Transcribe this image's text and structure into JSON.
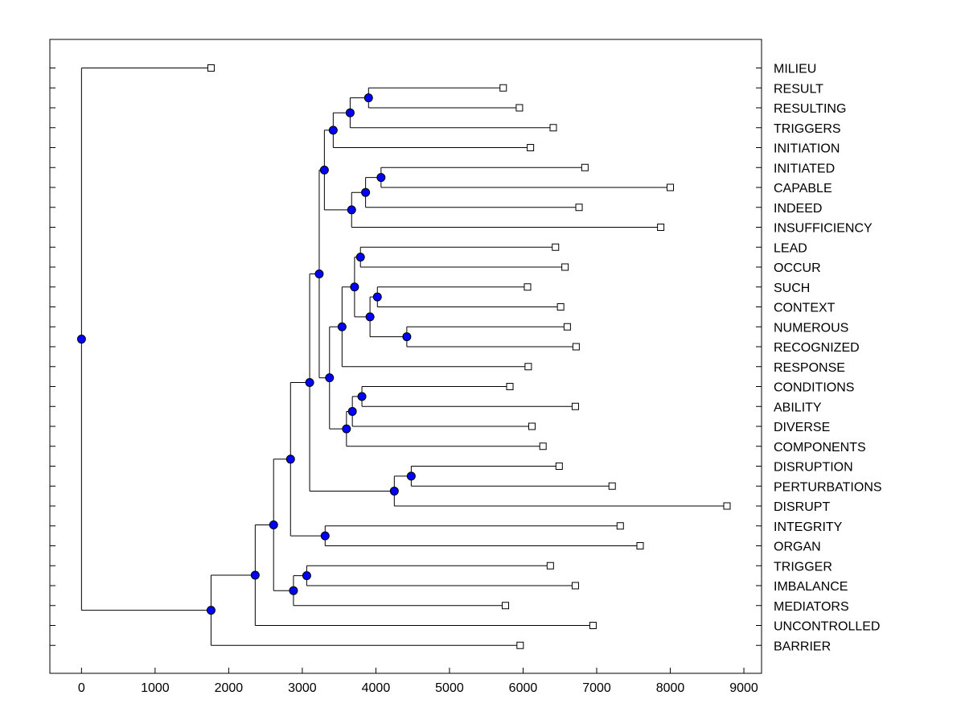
{
  "chart_data": {
    "type": "dendrogram",
    "xlim": [
      -430,
      9240
    ],
    "x_ticks": [
      0,
      1000,
      2000,
      3000,
      4000,
      5000,
      6000,
      7000,
      8000,
      9000
    ],
    "x_tick_labels": [
      "0",
      "1000",
      "2000",
      "3000",
      "4000",
      "5000",
      "6000",
      "7000",
      "8000",
      "9000"
    ],
    "leaves": [
      {
        "label": "MILIEU",
        "x": 1760
      },
      {
        "label": "RESULT",
        "x": 5730
      },
      {
        "label": "RESULTING",
        "x": 5950
      },
      {
        "label": "TRIGGERS",
        "x": 6410
      },
      {
        "label": "INITIATION",
        "x": 6100
      },
      {
        "label": "INITIATED",
        "x": 6840
      },
      {
        "label": "CAPABLE",
        "x": 8000
      },
      {
        "label": "INDEED",
        "x": 6760
      },
      {
        "label": "INSUFFICIENCY",
        "x": 7870
      },
      {
        "label": "LEAD",
        "x": 6440
      },
      {
        "label": "OCCUR",
        "x": 6570
      },
      {
        "label": "SUCH",
        "x": 6060
      },
      {
        "label": "CONTEXT",
        "x": 6510
      },
      {
        "label": "NUMEROUS",
        "x": 6600
      },
      {
        "label": "RECOGNIZED",
        "x": 6720
      },
      {
        "label": "RESPONSE",
        "x": 6070
      },
      {
        "label": "CONDITIONS",
        "x": 5820
      },
      {
        "label": "ABILITY",
        "x": 6710
      },
      {
        "label": "DIVERSE",
        "x": 6120
      },
      {
        "label": "COMPONENTS",
        "x": 6270
      },
      {
        "label": "DISRUPTION",
        "x": 6490
      },
      {
        "label": "PERTURBATIONS",
        "x": 7210
      },
      {
        "label": "DISRUPT",
        "x": 8770
      },
      {
        "label": "INTEGRITY",
        "x": 7320
      },
      {
        "label": "ORGAN",
        "x": 7590
      },
      {
        "label": "TRIGGER",
        "x": 6370
      },
      {
        "label": "IMBALANCE",
        "x": 6710
      },
      {
        "label": "MEDIATORS",
        "x": 5760
      },
      {
        "label": "UNCONTROLLED",
        "x": 6950
      },
      {
        "label": "BARRIER",
        "x": 5960
      }
    ],
    "nodes": [
      {
        "id": "n_result",
        "x": 3900,
        "children": [
          {
            "leaf": 1
          },
          {
            "leaf": 2
          }
        ]
      },
      {
        "id": "n_resulting",
        "x": 3650,
        "children": [
          {
            "node": "n_result"
          },
          {
            "leaf": 3
          }
        ]
      },
      {
        "id": "n_triggers",
        "x": 3420,
        "children": [
          {
            "node": "n_resulting"
          },
          {
            "leaf": 4
          }
        ]
      },
      {
        "id": "n_initiated",
        "x": 4070,
        "children": [
          {
            "leaf": 5
          },
          {
            "leaf": 6
          }
        ]
      },
      {
        "id": "n_capable",
        "x": 3860,
        "children": [
          {
            "node": "n_initiated"
          },
          {
            "leaf": 7
          }
        ]
      },
      {
        "id": "n_indeed",
        "x": 3670,
        "children": [
          {
            "node": "n_capable"
          },
          {
            "leaf": 8
          }
        ]
      },
      {
        "id": "n_upper",
        "x": 3300,
        "children": [
          {
            "node": "n_triggers"
          },
          {
            "node": "n_indeed"
          }
        ]
      },
      {
        "id": "n_lead",
        "x": 3790,
        "children": [
          {
            "leaf": 9
          },
          {
            "leaf": 10
          }
        ]
      },
      {
        "id": "n_such",
        "x": 4020,
        "children": [
          {
            "leaf": 11
          },
          {
            "leaf": 12
          }
        ]
      },
      {
        "id": "n_numerous",
        "x": 4420,
        "children": [
          {
            "leaf": 13
          },
          {
            "leaf": 14
          }
        ]
      },
      {
        "id": "n_context",
        "x": 3920,
        "children": [
          {
            "node": "n_such"
          },
          {
            "node": "n_numerous"
          }
        ]
      },
      {
        "id": "n_occur",
        "x": 3710,
        "children": [
          {
            "node": "n_lead"
          },
          {
            "node": "n_context"
          }
        ]
      },
      {
        "id": "n_recog",
        "x": 3540,
        "children": [
          {
            "node": "n_occur"
          },
          {
            "leaf": 15
          }
        ]
      },
      {
        "id": "n_conditions",
        "x": 3810,
        "children": [
          {
            "leaf": 16
          },
          {
            "leaf": 17
          }
        ]
      },
      {
        "id": "n_ability",
        "x": 3680,
        "children": [
          {
            "node": "n_conditions"
          },
          {
            "leaf": 18
          }
        ]
      },
      {
        "id": "n_diverse",
        "x": 3600,
        "children": [
          {
            "node": "n_ability"
          },
          {
            "leaf": 19
          }
        ]
      },
      {
        "id": "n_mid",
        "x": 3370,
        "children": [
          {
            "node": "n_recog"
          },
          {
            "node": "n_diverse"
          }
        ]
      },
      {
        "id": "n_upmid",
        "x": 3230,
        "children": [
          {
            "node": "n_upper"
          },
          {
            "node": "n_mid"
          }
        ]
      },
      {
        "id": "n_disruption",
        "x": 4480,
        "children": [
          {
            "leaf": 20
          },
          {
            "leaf": 21
          }
        ]
      },
      {
        "id": "n_perturb",
        "x": 4250,
        "children": [
          {
            "node": "n_disruption"
          },
          {
            "leaf": 22
          }
        ]
      },
      {
        "id": "n_big",
        "x": 3100,
        "children": [
          {
            "node": "n_upmid"
          },
          {
            "node": "n_perturb"
          }
        ]
      },
      {
        "id": "n_integrity",
        "x": 3310,
        "children": [
          {
            "leaf": 23
          },
          {
            "leaf": 24
          }
        ]
      },
      {
        "id": "n_big2",
        "x": 2840,
        "children": [
          {
            "node": "n_big"
          },
          {
            "node": "n_integrity"
          }
        ]
      },
      {
        "id": "n_trigger",
        "x": 3060,
        "children": [
          {
            "leaf": 25
          },
          {
            "leaf": 26
          }
        ]
      },
      {
        "id": "n_imbalance",
        "x": 2880,
        "children": [
          {
            "node": "n_trigger"
          },
          {
            "leaf": 27
          }
        ]
      },
      {
        "id": "n_big3",
        "x": 2610,
        "children": [
          {
            "node": "n_big2"
          },
          {
            "node": "n_imbalance"
          }
        ]
      },
      {
        "id": "n_big4",
        "x": 2360,
        "children": [
          {
            "node": "n_big3"
          },
          {
            "leaf": 28
          }
        ]
      },
      {
        "id": "n_big5",
        "x": 1760,
        "children": [
          {
            "node": "n_big4"
          },
          {
            "leaf": 29
          }
        ]
      },
      {
        "id": "n_root",
        "x": 0,
        "children": [
          {
            "leaf": 0
          },
          {
            "node": "n_big5"
          }
        ]
      }
    ],
    "node_color": "#0000ff",
    "leaf_marker_color": "#ffffff",
    "line_color": "#000000"
  }
}
